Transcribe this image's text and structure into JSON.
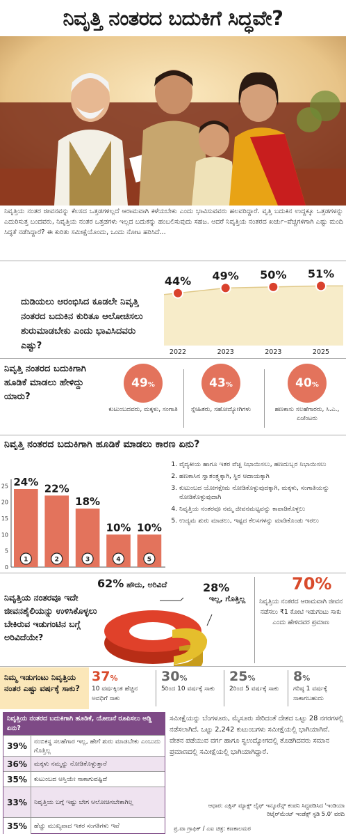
{
  "title": "ನಿವೃತ್ತಿ ನಂತರದ ಬದುಕಿಗೆ ಸಿದ್ಧವೇ?",
  "intro": "ನಿವೃತ್ತಿಯ ನಂತರ ಜೀವನವನ್ನು ಕೆಲಸದ ಒತ್ತಡಗಳಿಲ್ಲದೆ ಆರಾಮವಾಗಿ ಕಳೆಯಬೇಕು ಎಂದು ಭಾವಿಸುವವರು ಹಲವರಿದ್ದಾರೆ. ವೃತ್ತಿ ಬದುಕಿನ ಉದ್ದಕ್ಕೂ ಒತ್ತಡಗಳನ್ನು ಎದುರಿಸುತ್ತ ಬಂದವರು, ನಿವೃತ್ತಿಯ ನಂತರ ಒತ್ತಡಗಳು ಇಲ್ಲದ ಬದುಕನ್ನು ಹಂಬಲಿಸುವುದು ಸಹಜ. ಆದರೆ ನಿವೃತ್ತಿಯ ನಂತರದ ಖರ್ಚು–ವೆಚ್ಚಗಳಿಗಾಗಿ ಎಷ್ಟು ಮಂದಿ ಸಿದ್ಧತೆ ನಡೆಸಿದ್ದಾರೆ? ಈ ಕುರಿತು ಸಮೀಕ್ಷೆಯೊಂದು, ಒಂದು ನೋಟ ಹರಿಸಿದೆ...",
  "chart_data": [
    {
      "type": "area",
      "title": "ದುಡಿಯಲು ಆರಂಭಿಸಿದ ಕೂಡಲೇ ನಿವೃತ್ತಿ ನಂತರದ ಬದುಕಿನ ಕುರಿತೂ ಆಲೋಚಿಸಲು ಶುರುಮಾಡಬೇಕು ಎಂದು ಭಾವಿಸಿದವರು ಎಷ್ಟು?",
      "categories": [
        "2022",
        "2023",
        "2023",
        "2025"
      ],
      "values": [
        44,
        49,
        50,
        51
      ],
      "labels": [
        "44%",
        "49%",
        "50%",
        "51%"
      ]
    },
    {
      "type": "bar",
      "title": "ನಿವೃತ್ತಿ ನಂತರದ ಬದುಕಿಗಾಗಿ ಹೂಡಿಕೆ ಮಾಡಲು ಕಾರಣ ಏನು?",
      "categories": [
        "1",
        "2",
        "3",
        "4",
        "5"
      ],
      "values": [
        24,
        22,
        18,
        10,
        10
      ],
      "labels": [
        "24%",
        "22%",
        "18%",
        "10%",
        "10%"
      ],
      "yticks": [
        "0",
        "5",
        "10",
        "15",
        "20",
        "25"
      ],
      "ylim": [
        0,
        27
      ]
    },
    {
      "type": "pie",
      "title": "ನಿವೃತ್ತಿಯ ನಂತರವೂ ಇದೇ ಜೀವನಶೈಲಿಯನ್ನು ಉಳಿಸಿಕೊಳ್ಳಲು ಬೇಕಿರುವ ಇಡುಗಂಟಿನ ಬಗ್ಗೆ ಅರಿವಿದೆಯೇ?",
      "slices": [
        {
          "label": "ಹೌದು, ಅರಿವಿದೆ",
          "value": 62,
          "color": "#d83a22"
        },
        {
          "label": "ಇಲ್ಲ, ಗೊತ್ತಿಲ್ಲ",
          "value": 28,
          "color": "#e3b92a"
        }
      ]
    },
    {
      "type": "table",
      "title": "ನಿವೃತ್ತಿಯ ನಂತರದ ಬದುಕಿಗಾಗಿ ಹೂಡಿಕೆ, ಯೋಜನೆ ರೂಪಿಸಲು ಅಡ್ಡಿ ಏನು?",
      "rows": [
        {
          "value": "39%",
          "text": "ನಂಬಿಕಸ್ಥ ಸಲಹೆಗಾರ ಇಲ್ಲ, ಹೇಗೆ ಶುರು ಮಾಡಬೇಕು ಎಂಬುದು ಗೊತ್ತಿಲ್ಲ"
        },
        {
          "value": "36%",
          "text": "ಮಕ್ಕಳು ನಮ್ಮನ್ನು ನೋಡಿಕೊಳ್ಳುತ್ತಾರೆ"
        },
        {
          "value": "35%",
          "text": "ಕುಟುಂಬದ ಆಸ್ತಿಯೇ ಸಾಕಾಗುವಷ್ಟಿದೆ"
        },
        {
          "value": "33%",
          "text": "ನಿವೃತ್ತಿಯ ಬಗ್ಗೆ ಇಷ್ಟು ಬೇಗ ಆಲೋಚಿಸಬೇಕಾಗಿಲ್ಲ"
        },
        {
          "value": "35%",
          "text": "ಹೆಚ್ಚು ಮುಖ್ಯವಾದ ಇತರ ಸಂಗತಿಗಳು ಇವೆ"
        }
      ]
    }
  ],
  "invest_question": "ನಿವೃತ್ತಿ ನಂತರದ ಬದುಕಿಗಾಗಿ ಹೂಡಿಕೆ ಮಾಡಲು ಹೇಳಿದ್ದು ಯಾರು?",
  "advisors": [
    {
      "pct": "49",
      "label": "ಕುಟುಂಬದವರು, ಮಕ್ಕಳು, ಸಂಗಾತಿ"
    },
    {
      "pct": "43",
      "label": "ಸ್ನೇಹಿತರು, ಸಹೋದ್ಯೋಗಿಗಳು"
    },
    {
      "pct": "40",
      "label": "ಹಣಕಾಸು ಸಲಹೆಗಾರರು, ಸಿ.ಎ., ಏಜೆಂಟರು"
    }
  ],
  "pct_sign": "%",
  "reasons": [
    "ವೈದ್ಯಕೀಯ ಹಾಗೂ ಇತರ ವೆಚ್ಚ ನಿಭಾಯಿಸಲು, ಹಣದುಬ್ಬರ ನಿಭಾಯಿಸಲು",
    "ಹಣಕಾಸಿನ ಸ್ವಾತಂತ್ರ್ಯಕ್ಕಾಗಿ, ಸ್ಥಿರ ಆದಾಯಕ್ಕಾಗಿ",
    "ಕುಟುಂಬದ ಯೋಗಕ್ಷೇಮ ನೋಡಿಕೊಳ್ಳುವುದಕ್ಕಾಗಿ, ಮಕ್ಕಳು, ಸಂಗಾತಿಯನ್ನು ನೋಡಿಕೊಳ್ಳುವುದಾಗಿ",
    "ನಿವೃತ್ತಿಯ ನಂತರವೂ ನಮ್ಮ ಜೀವನಮಟ್ಟವನ್ನು ಕಾಪಾಡಿಕೊಳ್ಳಲು",
    "ಉದ್ಯಮ ಶುರು ಮಾಡಲು, ಇಷ್ಟದ ಕೆಲಸಗಳನ್ನು ಮಾಡಿಕೊಂಡು ಇರಲು"
  ],
  "awareness": {
    "yes_pct": "62%",
    "yes_label": "ಹೌದು, ಅರಿವಿದೆ",
    "no_pct": "28%",
    "no_label": "ಇಲ್ಲ, ಗೊತ್ತಿಲ್ಲ",
    "highlight_pct": "70%",
    "highlight_desc": "ನಿವೃತ್ತಿಯ ನಂತರದ ಆರಾಮವಾಗಿ ಜೀವನ ನಡೆಸಲು ₹1 ಕೋಟಿ ಇಡುಗಂಟು ಸಾಕು ಎಂದು ಹೇಳಿದವರ ಪ್ರಮಾಣ"
  },
  "savings_question": "ನಿಮ್ಮ ಇಡುಗಂಟು ನಿವೃತ್ತಿಯ ನಂತರ ಎಷ್ಟು ವರ್ಷಕ್ಕೆ ಸಾಕು?",
  "savings": [
    {
      "pct": "37",
      "label": "10 ವರ್ಷಕ್ಕಿಂತ ಹೆಚ್ಚಿನ ಅವಧಿಗೆ ಸಾಕು",
      "color": "#d84a2b"
    },
    {
      "pct": "30",
      "label": "5ರಿಂದ 10 ವರ್ಷಕ್ಕೆ ಸಾಕು",
      "color": "#666666"
    },
    {
      "pct": "25",
      "label": "2ರಿಂದ 5 ವರ್ಷಕ್ಕೆ ಸಾಕು",
      "color": "#666666"
    },
    {
      "pct": "8",
      "label": "ಗರಿಷ್ಠ 1 ವರ್ಷಕ್ಕೆ ಸಾಕಾಗಬಹುದು",
      "color": "#666666"
    }
  ],
  "survey_text": "ಸಮೀಕ್ಷೆಯನ್ನು ಬೆಂಗಳೂರು, ಮೈಸೂರು ಸೇರಿದಂತೆ ದೇಶದ ಒಟ್ಟು 28 ನಗರಗಳಲ್ಲಿ ನಡೆಸಲಾಗಿದೆ. ಒಟ್ಟು 2,242 ಕುಟುಂಬಗಳು ಸಮೀಕ್ಷೆಯಲ್ಲಿ ಭಾಗಿಯಾಗಿವೆ. ವೇತನ ಪಡೆಯುವ ವರ್ಗ ಹಾಗೂ ಸ್ವಉದ್ಯೋಗದಲ್ಲಿ ತೊಡಗಿದವರು ಸಮಾನ ಪ್ರಮಾಣದಲ್ಲಿ ಸಮೀಕ್ಷೆಯಲ್ಲಿ ಭಾಗಿಯಾಗಿದ್ದಾರೆ.",
  "source": "ಆಧಾರ: ಎಕ್ಸಿಸ್ ಮ್ಯಾಕ್ಸ್ ಲೈಫ್ ಇನ್ಶೂರೆನ್ಸ್ ಕಂಪನಿ ಸಿದ್ಧಪಡಿಸಿದ 'ಇಂಡಿಯಾ ರಿಟೈರ್‌ಮೆಂಟ್ ಇಂಡೆಕ್ಸ್ ಸ್ಟಡಿ 5.0' ವರದಿ",
  "credit": "ಪ್ರ.ವಾ ಗ್ರಾಫಿಕ್ / ಎಐ ಚಿತ್ರ: ಕಣಕಾಲಮಠ",
  "colors": {
    "accent": "#d84a2b",
    "bar": "#e3735c",
    "purple": "#7e4a86",
    "gold": "#fbe7b9"
  }
}
